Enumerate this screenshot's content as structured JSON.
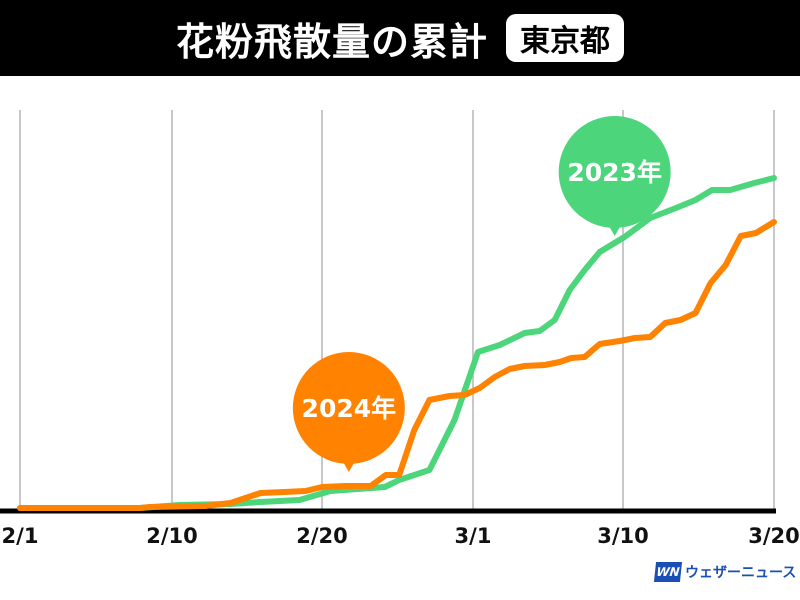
{
  "header": {
    "title": "花粉飛散量の累計",
    "region": "東京都"
  },
  "logo": {
    "mark": "WN",
    "text": "ウェザーニュース"
  },
  "chart_data": {
    "type": "line",
    "title": "花粉飛散量の累計",
    "subtitle": "東京都",
    "xlabel": "",
    "ylabel": "",
    "x_unit": "days since 2/1",
    "xlim": [
      0,
      47
    ],
    "ylim": [
      0,
      100
    ],
    "y_scale": "relative (no axis labels shown)",
    "grid": "vertical",
    "ticks": [
      {
        "label": "2/1",
        "x": 0
      },
      {
        "label": "2/10",
        "x": 9
      },
      {
        "label": "2/20",
        "x": 19
      },
      {
        "label": "3/1",
        "x": 28
      },
      {
        "label": "3/10",
        "x": 37
      },
      {
        "label": "3/20",
        "x": 47
      }
    ],
    "series": [
      {
        "name": "2023年",
        "color": "#4cd57a",
        "label_at": [
          36.5,
          84
        ],
        "x": [
          0,
          7.1,
          9.5,
          12.9,
          14.9,
          17.5,
          19.5,
          22.75,
          23.6,
          25.4,
          26.9,
          28.3,
          29.6,
          31.1,
          32,
          32.9,
          33.8,
          34.7,
          35.6,
          37.1,
          38.8,
          40.5,
          41.8,
          42.9,
          44.1,
          45.7,
          47
        ],
        "y": [
          0,
          0,
          0.75,
          1,
          1.5,
          2,
          4.25,
          5.25,
          7,
          9.5,
          22,
          39,
          40.75,
          43.75,
          44.25,
          47,
          54.5,
          59.5,
          64,
          67.75,
          72.5,
          75,
          77,
          79.5,
          79.5,
          81.25,
          82.5
        ]
      },
      {
        "name": "2024年",
        "color": "#ff8200",
        "label_at": [
          20.6,
          25
        ],
        "x": [
          0,
          7.1,
          7.7,
          11.2,
          12.9,
          14.9,
          16.5,
          17.9,
          19,
          20.4,
          21.9,
          22.8,
          23.6,
          24.5,
          25.4,
          26.6,
          27.5,
          28.4,
          29.3,
          30.2,
          31.1,
          32.3,
          33.2,
          33.9,
          34.7,
          35.6,
          36.8,
          37.8,
          38.8,
          39.8,
          40.8,
          41.8,
          42.8,
          43.8,
          44.8,
          45.8,
          47
        ],
        "y": [
          0,
          0,
          0.25,
          0.5,
          1.25,
          3.75,
          4,
          4.25,
          5.25,
          5.5,
          5.5,
          8.25,
          8.25,
          19.5,
          27,
          28,
          28.25,
          30,
          32.75,
          34.75,
          35.5,
          35.75,
          36.5,
          37.5,
          37.75,
          41,
          41.75,
          42.5,
          42.75,
          46.25,
          47,
          48.75,
          56.25,
          60.75,
          68,
          68.75,
          71.5
        ]
      }
    ]
  }
}
